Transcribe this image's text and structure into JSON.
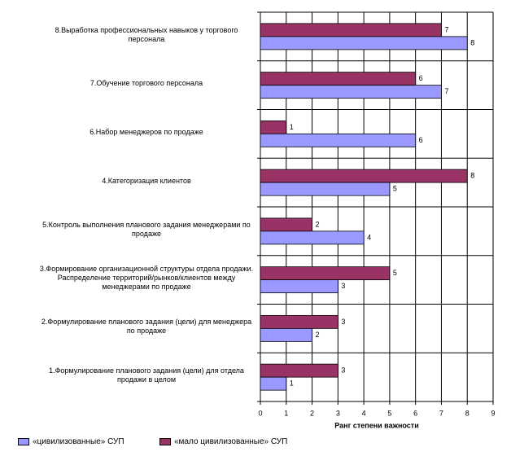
{
  "chart_data": {
    "type": "bar",
    "orientation": "horizontal",
    "categories": [
      "8.Выработка профессиональных навыков у торгового персонала",
      "7.Обучение торгового персонала",
      "6.Набор менеджеров по продаже",
      "4.Категоризация клиентов",
      "5.Контроль выполнения планового задания менеджерами по продаже",
      "3.Формирование организационной структуры отдела продажи. Распределение территорий/рынков/клиентов между менеджерами по продаже",
      "2.Формулирование планового задания (цели) для менеджера по продаже",
      "1.Формулирование планового задания (цели) для отдела продажи в целом"
    ],
    "series": [
      {
        "name": "«цивилизованные» СУП",
        "color": "#9999ff",
        "values": [
          8,
          7,
          6,
          5,
          4,
          3,
          2,
          1
        ]
      },
      {
        "name": "«мало цивилизованные» СУП",
        "color": "#993366",
        "values": [
          7,
          6,
          1,
          8,
          2,
          5,
          3,
          3
        ]
      }
    ],
    "xlabel": "Ранг степени важности",
    "xlim": [
      0,
      9
    ],
    "xticks": [
      0,
      1,
      2,
      3,
      4,
      5,
      6,
      7,
      8,
      9
    ],
    "grid": true,
    "legend": "bottom"
  }
}
